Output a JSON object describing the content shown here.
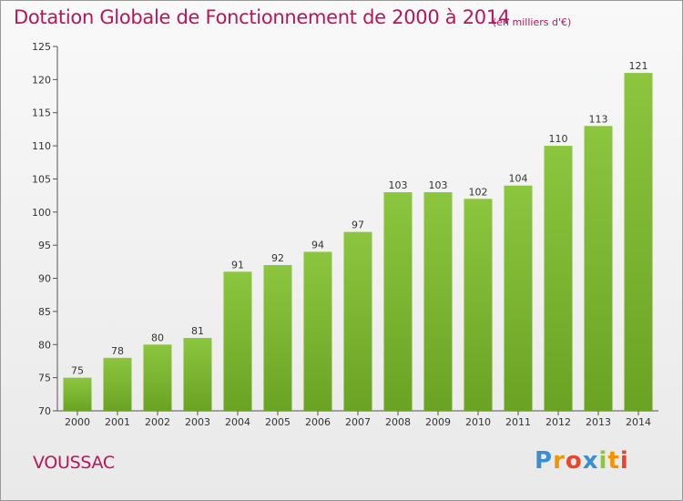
{
  "chart_data": {
    "type": "bar",
    "title": "Dotation Globale de Fonctionnement de 2000 à 2014",
    "subtitle": "(en milliers d'€)",
    "categories": [
      "2000",
      "2001",
      "2002",
      "2003",
      "2004",
      "2005",
      "2006",
      "2007",
      "2008",
      "2009",
      "2010",
      "2011",
      "2012",
      "2013",
      "2014"
    ],
    "values": [
      75,
      78,
      80,
      81,
      91,
      92,
      94,
      97,
      103,
      103,
      102,
      104,
      110,
      113,
      121
    ],
    "xlabel": "",
    "ylabel": "",
    "ylim": [
      70,
      125
    ],
    "yticks": [
      70,
      75,
      80,
      85,
      90,
      95,
      100,
      105,
      110,
      115,
      120,
      125
    ],
    "grid": false,
    "bar_color": "#8cc63f",
    "bar_color_dark": "#6aa323"
  },
  "footer": {
    "commune": "VOUSSAC",
    "brand_letters": [
      "P",
      "r",
      "o",
      "x",
      "i",
      "t",
      "i"
    ],
    "brand_colors": [
      "#3a8fd1",
      "#f29400",
      "#e8462c",
      "#3a8fd1",
      "#8cc63f",
      "#f29400",
      "#e8462c"
    ]
  },
  "colors": {
    "title": "#b8155a",
    "axis": "#555555"
  }
}
